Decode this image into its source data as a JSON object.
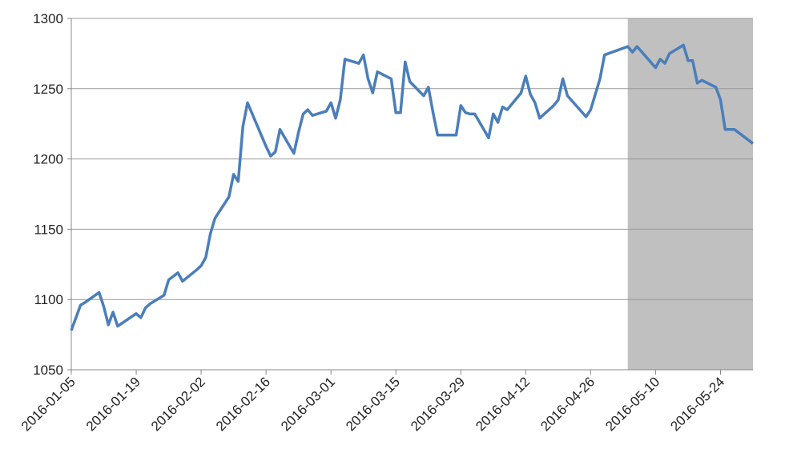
{
  "chart_data": {
    "type": "line",
    "x": [
      "2016-01-05",
      "2016-01-07",
      "2016-01-08",
      "2016-01-11",
      "2016-01-12",
      "2016-01-13",
      "2016-01-14",
      "2016-01-15",
      "2016-01-19",
      "2016-01-20",
      "2016-01-21",
      "2016-01-22",
      "2016-01-25",
      "2016-01-26",
      "2016-01-28",
      "2016-01-29",
      "2016-02-01",
      "2016-02-02",
      "2016-02-03",
      "2016-02-04",
      "2016-02-05",
      "2016-02-08",
      "2016-02-09",
      "2016-02-10",
      "2016-02-11",
      "2016-02-12",
      "2016-02-16",
      "2016-02-17",
      "2016-02-18",
      "2016-02-19",
      "2016-02-22",
      "2016-02-23",
      "2016-02-24",
      "2016-02-25",
      "2016-02-26",
      "2016-02-29",
      "2016-03-01",
      "2016-03-02",
      "2016-03-03",
      "2016-03-04",
      "2016-03-07",
      "2016-03-08",
      "2016-03-09",
      "2016-03-10",
      "2016-03-11",
      "2016-03-14",
      "2016-03-15",
      "2016-03-16",
      "2016-03-17",
      "2016-03-18",
      "2016-03-21",
      "2016-03-22",
      "2016-03-23",
      "2016-03-24",
      "2016-03-28",
      "2016-03-29",
      "2016-03-30",
      "2016-03-31",
      "2016-04-01",
      "2016-04-04",
      "2016-04-05",
      "2016-04-06",
      "2016-04-07",
      "2016-04-08",
      "2016-04-11",
      "2016-04-12",
      "2016-04-13",
      "2016-04-14",
      "2016-04-15",
      "2016-04-18",
      "2016-04-19",
      "2016-04-20",
      "2016-04-21",
      "2016-04-25",
      "2016-04-26",
      "2016-04-28",
      "2016-04-29",
      "2016-05-04",
      "2016-05-05",
      "2016-05-06",
      "2016-05-10",
      "2016-05-11",
      "2016-05-12",
      "2016-05-13",
      "2016-05-16",
      "2016-05-17",
      "2016-05-18",
      "2016-05-19",
      "2016-05-20",
      "2016-05-23",
      "2016-05-24",
      "2016-05-25",
      "2016-05-27",
      "2016-05-31"
    ],
    "series": [
      {
        "color": "#4a7ebb",
        "values": [
          1078,
          1096,
          1098,
          1105,
          1095,
          1082,
          1091,
          1081,
          1090,
          1087,
          1094,
          1097,
          1103,
          1114,
          1119,
          1113,
          1121,
          1124,
          1130,
          1147,
          1158,
          1173,
          1189,
          1184,
          1223,
          1240,
          1209,
          1202,
          1205,
          1221,
          1204,
          1219,
          1232,
          1235,
          1231,
          1234,
          1240,
          1229,
          1242,
          1271,
          1268,
          1274,
          1257,
          1247,
          1262,
          1257,
          1233,
          1233,
          1269,
          1255,
          1245,
          1251,
          1233,
          1217,
          1217,
          1238,
          1233,
          1232,
          1232,
          1215,
          1232,
          1226,
          1237,
          1235,
          1247,
          1259,
          1246,
          1240,
          1229,
          1238,
          1242,
          1257,
          1245,
          1230,
          1235,
          1257,
          1274,
          1280,
          1276,
          1280,
          1265,
          1271,
          1268,
          1275,
          1281,
          1270,
          1270,
          1254,
          1256,
          1251,
          1242,
          1221,
          1221,
          1211
        ]
      }
    ],
    "xlim": [
      "2016-01-05",
      "2016-05-31"
    ],
    "xticks": [
      "2016-01-05",
      "2016-01-19",
      "2016-02-02",
      "2016-02-16",
      "2016-03-01",
      "2016-03-15",
      "2016-03-29",
      "2016-04-12",
      "2016-04-26",
      "2016-05-10",
      "2016-05-24"
    ],
    "ylim": [
      1050,
      1300
    ],
    "yticks": [
      1050,
      1100,
      1150,
      1200,
      1250,
      1300
    ],
    "grid": true,
    "shade": {
      "from": "2016-05-04",
      "to": "2016-05-31",
      "color": "#c0c0c0"
    }
  }
}
